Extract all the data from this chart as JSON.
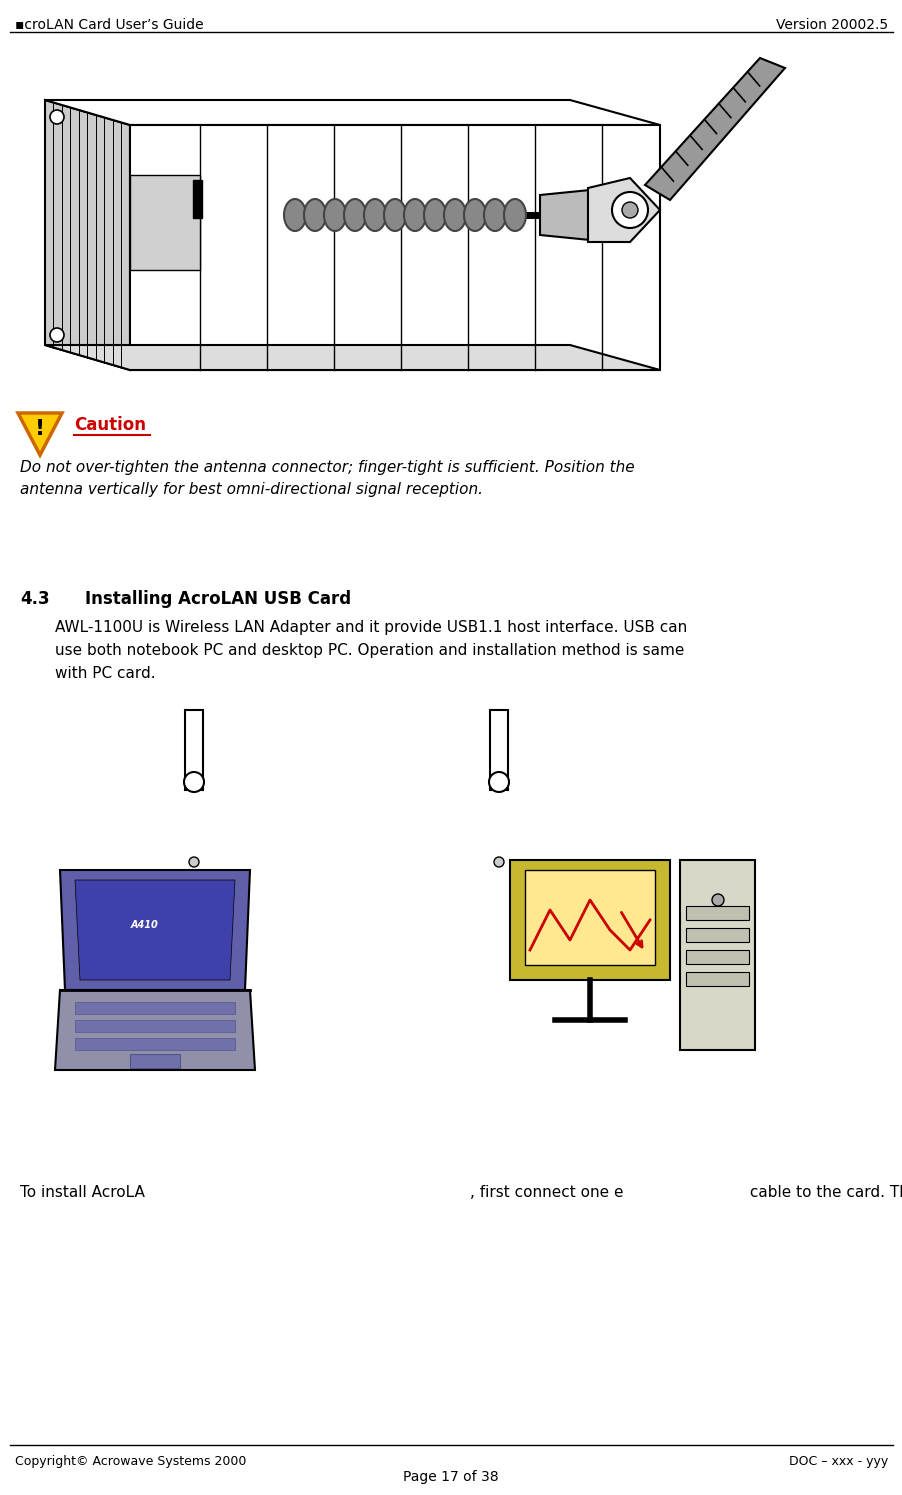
{
  "header_left": "▪croLAN Card User’s Guide",
  "header_right": "Version 20002.5",
  "footer_left": "Copyright© Acrowave Systems 2000",
  "footer_right": "DOC – xxx - yyy",
  "footer_center": "Page 17 of 38",
  "caution_title": "Caution",
  "caution_text_1": "Do not over-tighten the antenna connector; finger-tight is sufficient. Position the",
  "caution_text_2": "antenna vertically for best omni-directional signal reception.",
  "section_num": "4.3",
  "section_title": "Installing AcroLAN USB Card",
  "body_text1": "AWL-1100U is Wireless LAN Adapter and it provide USB1.1 host interface. USB can",
  "body_text2": "use both notebook PC and desktop PC. Operation and installation method is same",
  "body_text3": "with PC card.",
  "install_text1": "To install AcroLA",
  "install_text2": ", first connect one e",
  "install_text3": " cable to the card. Then,",
  "bg_color": "#ffffff",
  "text_color": "#000000",
  "header_line_color": "#000000",
  "footer_line_color": "#000000",
  "caution_color": "#cc0000",
  "warning_icon_bg": "#ffcc00",
  "warning_icon_border": "#cc6600"
}
